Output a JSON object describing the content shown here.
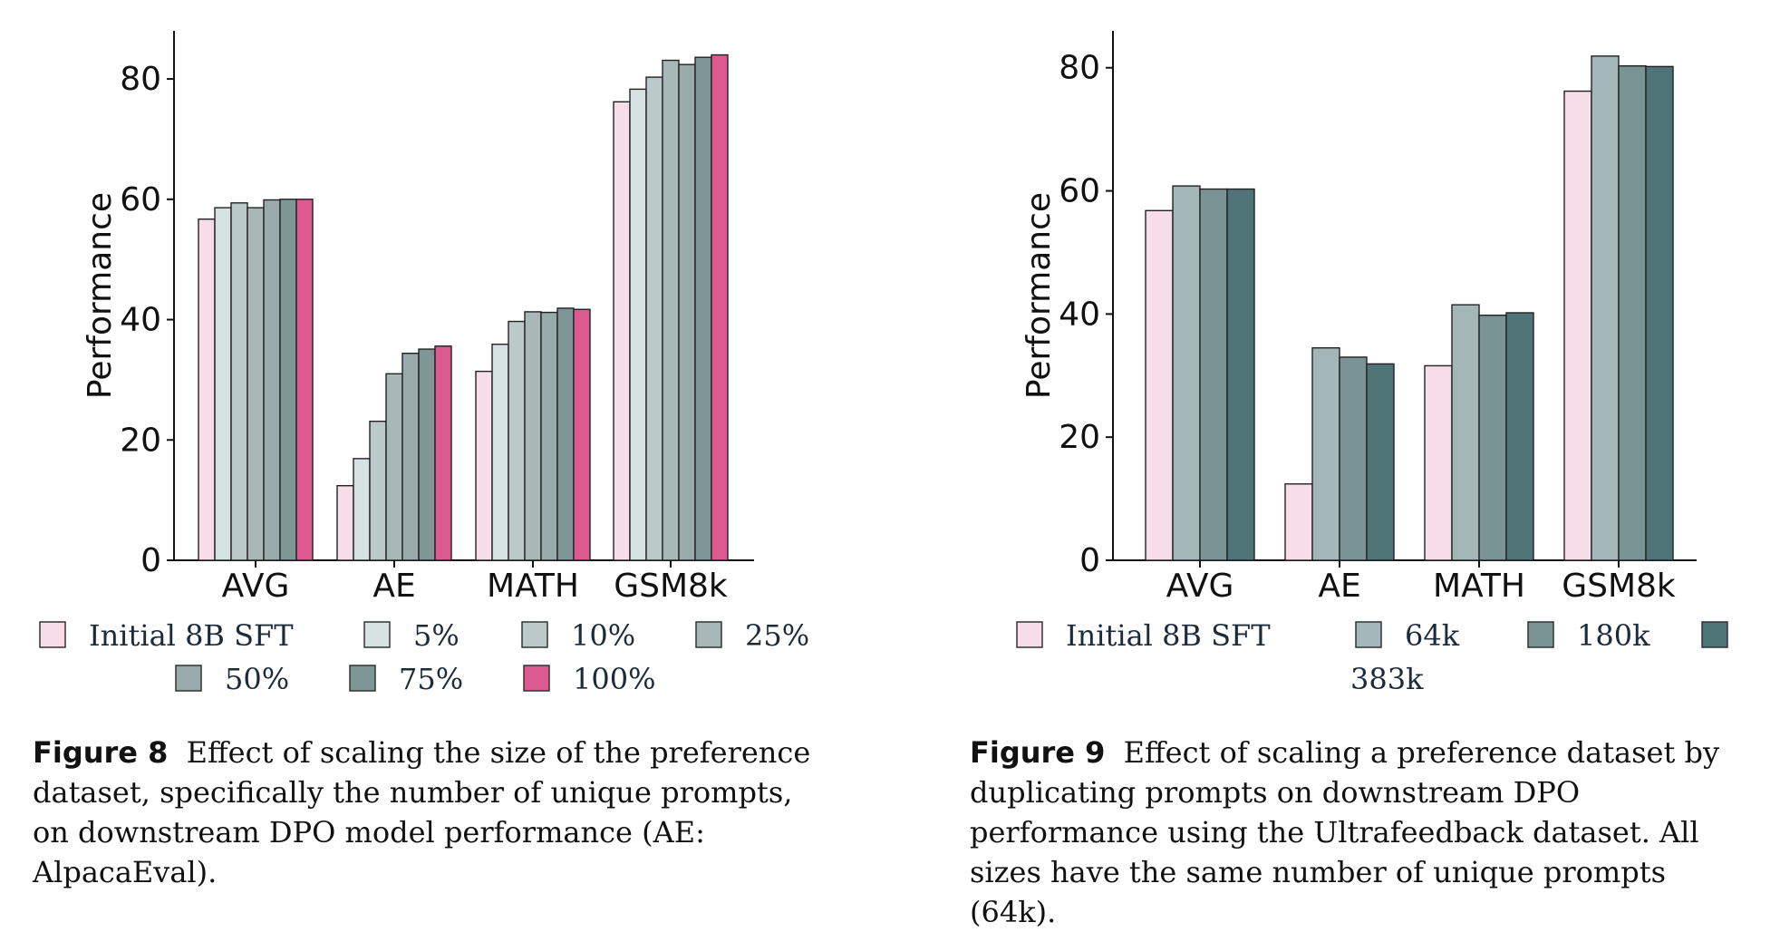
{
  "chart_data": [
    {
      "type": "bar",
      "categories": [
        "AVG",
        "AE",
        "MATH",
        "GSM8k"
      ],
      "ylabel": "Performance",
      "xlabel": "",
      "ylim": [
        0,
        88
      ],
      "yticks": [
        0,
        20,
        40,
        60,
        80
      ],
      "legend": "bottom",
      "grid": false,
      "series": [
        {
          "name": "Initial 8B SFT",
          "color": "#f6dde8",
          "values": [
            56.7,
            12.4,
            31.4,
            76.2
          ]
        },
        {
          "name": "5%",
          "color": "#d6e1e1",
          "values": [
            58.6,
            16.9,
            35.9,
            78.3
          ]
        },
        {
          "name": "10%",
          "color": "#bcc9ca",
          "values": [
            59.4,
            23.1,
            39.7,
            80.3
          ]
        },
        {
          "name": "25%",
          "color": "#a8b8b9",
          "values": [
            58.6,
            31.0,
            41.3,
            83.1
          ]
        },
        {
          "name": "50%",
          "color": "#98aaac",
          "values": [
            59.9,
            34.4,
            41.2,
            82.4
          ]
        },
        {
          "name": "75%",
          "color": "#7f9697",
          "values": [
            60.0,
            35.1,
            41.9,
            83.6
          ]
        },
        {
          "name": "100%",
          "color": "#dc5a8f",
          "values": [
            60.0,
            35.6,
            41.7,
            84.0
          ]
        }
      ]
    },
    {
      "type": "bar",
      "categories": [
        "AVG",
        "AE",
        "MATH",
        "GSM8k"
      ],
      "ylabel": "Performance",
      "xlabel": "",
      "ylim": [
        0,
        86
      ],
      "yticks": [
        0,
        20,
        40,
        60,
        80
      ],
      "legend": "bottom",
      "grid": false,
      "series": [
        {
          "name": "Initial 8B SFT",
          "color": "#f6dde8",
          "values": [
            56.8,
            12.4,
            31.6,
            76.2
          ]
        },
        {
          "name": "64k",
          "color": "#a3b6b8",
          "values": [
            60.8,
            34.5,
            41.5,
            81.9
          ]
        },
        {
          "name": "180k",
          "color": "#7a9495",
          "values": [
            60.3,
            33.0,
            39.8,
            80.3
          ]
        },
        {
          "name": "383k",
          "color": "#4f7478",
          "values": [
            60.3,
            31.9,
            40.2,
            80.2
          ]
        }
      ]
    }
  ],
  "captions": [
    {
      "number": "Figure 8",
      "text": "Effect of scaling the size of the preference dataset, specifically the number of unique prompts, on downstream DPO model performance (AE: AlpacaEval)."
    },
    {
      "number": "Figure 9",
      "text": "Effect of scaling a preference dataset by duplicating prompts on downstream DPO performance using the Ultrafeedback dataset. All sizes have the same number of unique prompts (64k)."
    }
  ]
}
